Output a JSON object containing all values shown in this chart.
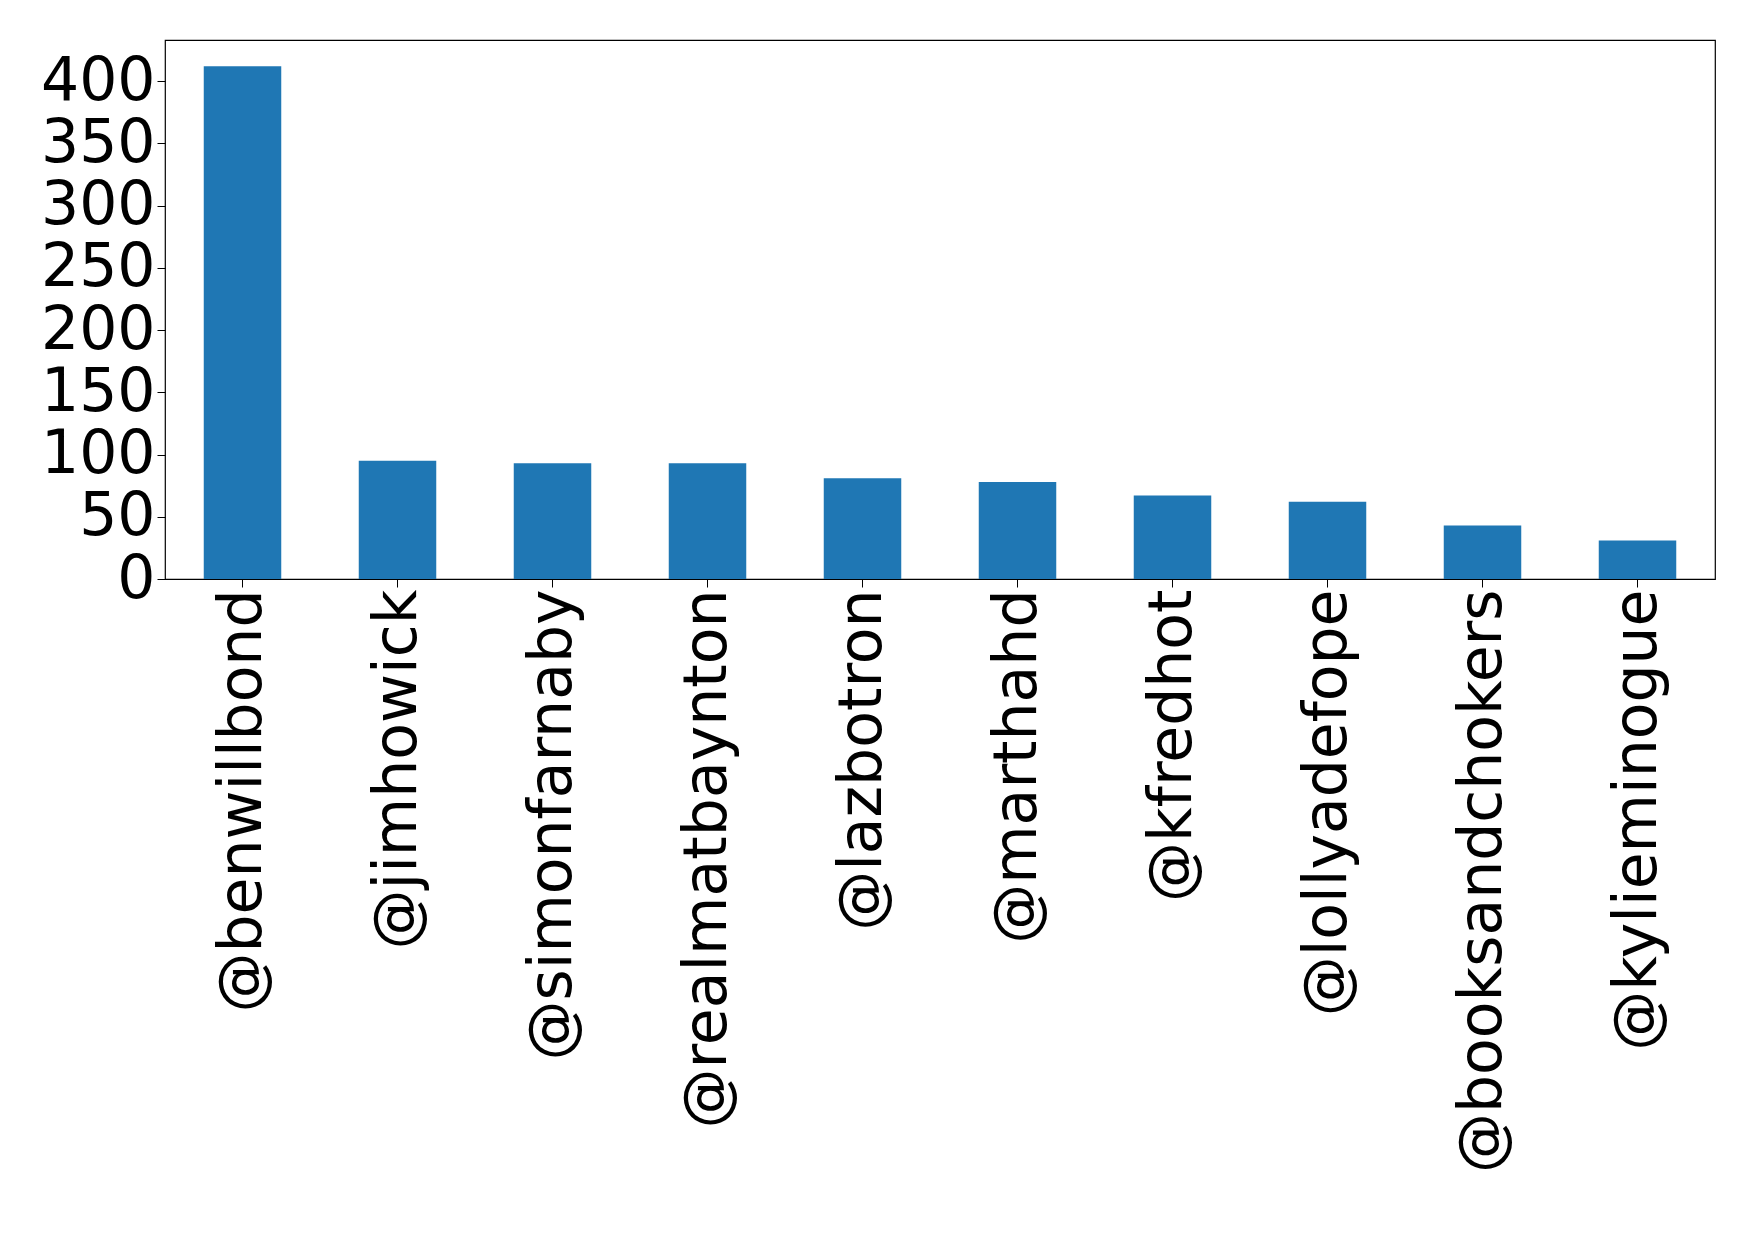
{
  "chart_data": {
    "type": "bar",
    "categories": [
      "@benwillbond",
      "@jimhowick",
      "@simonfarnaby",
      "@realmatbaynton",
      "@lazbotron",
      "@marthahd",
      "@kfredhot",
      "@lollyadefope",
      "@booksandchokers",
      "@kylieminogue"
    ],
    "values": [
      412,
      95,
      93,
      93,
      81,
      78,
      67,
      62,
      43,
      31
    ],
    "color": "#1f77b4",
    "ylim": [
      0,
      433
    ],
    "yticks": [
      0,
      50,
      100,
      150,
      200,
      250,
      300,
      350,
      400
    ],
    "grid": false
  }
}
